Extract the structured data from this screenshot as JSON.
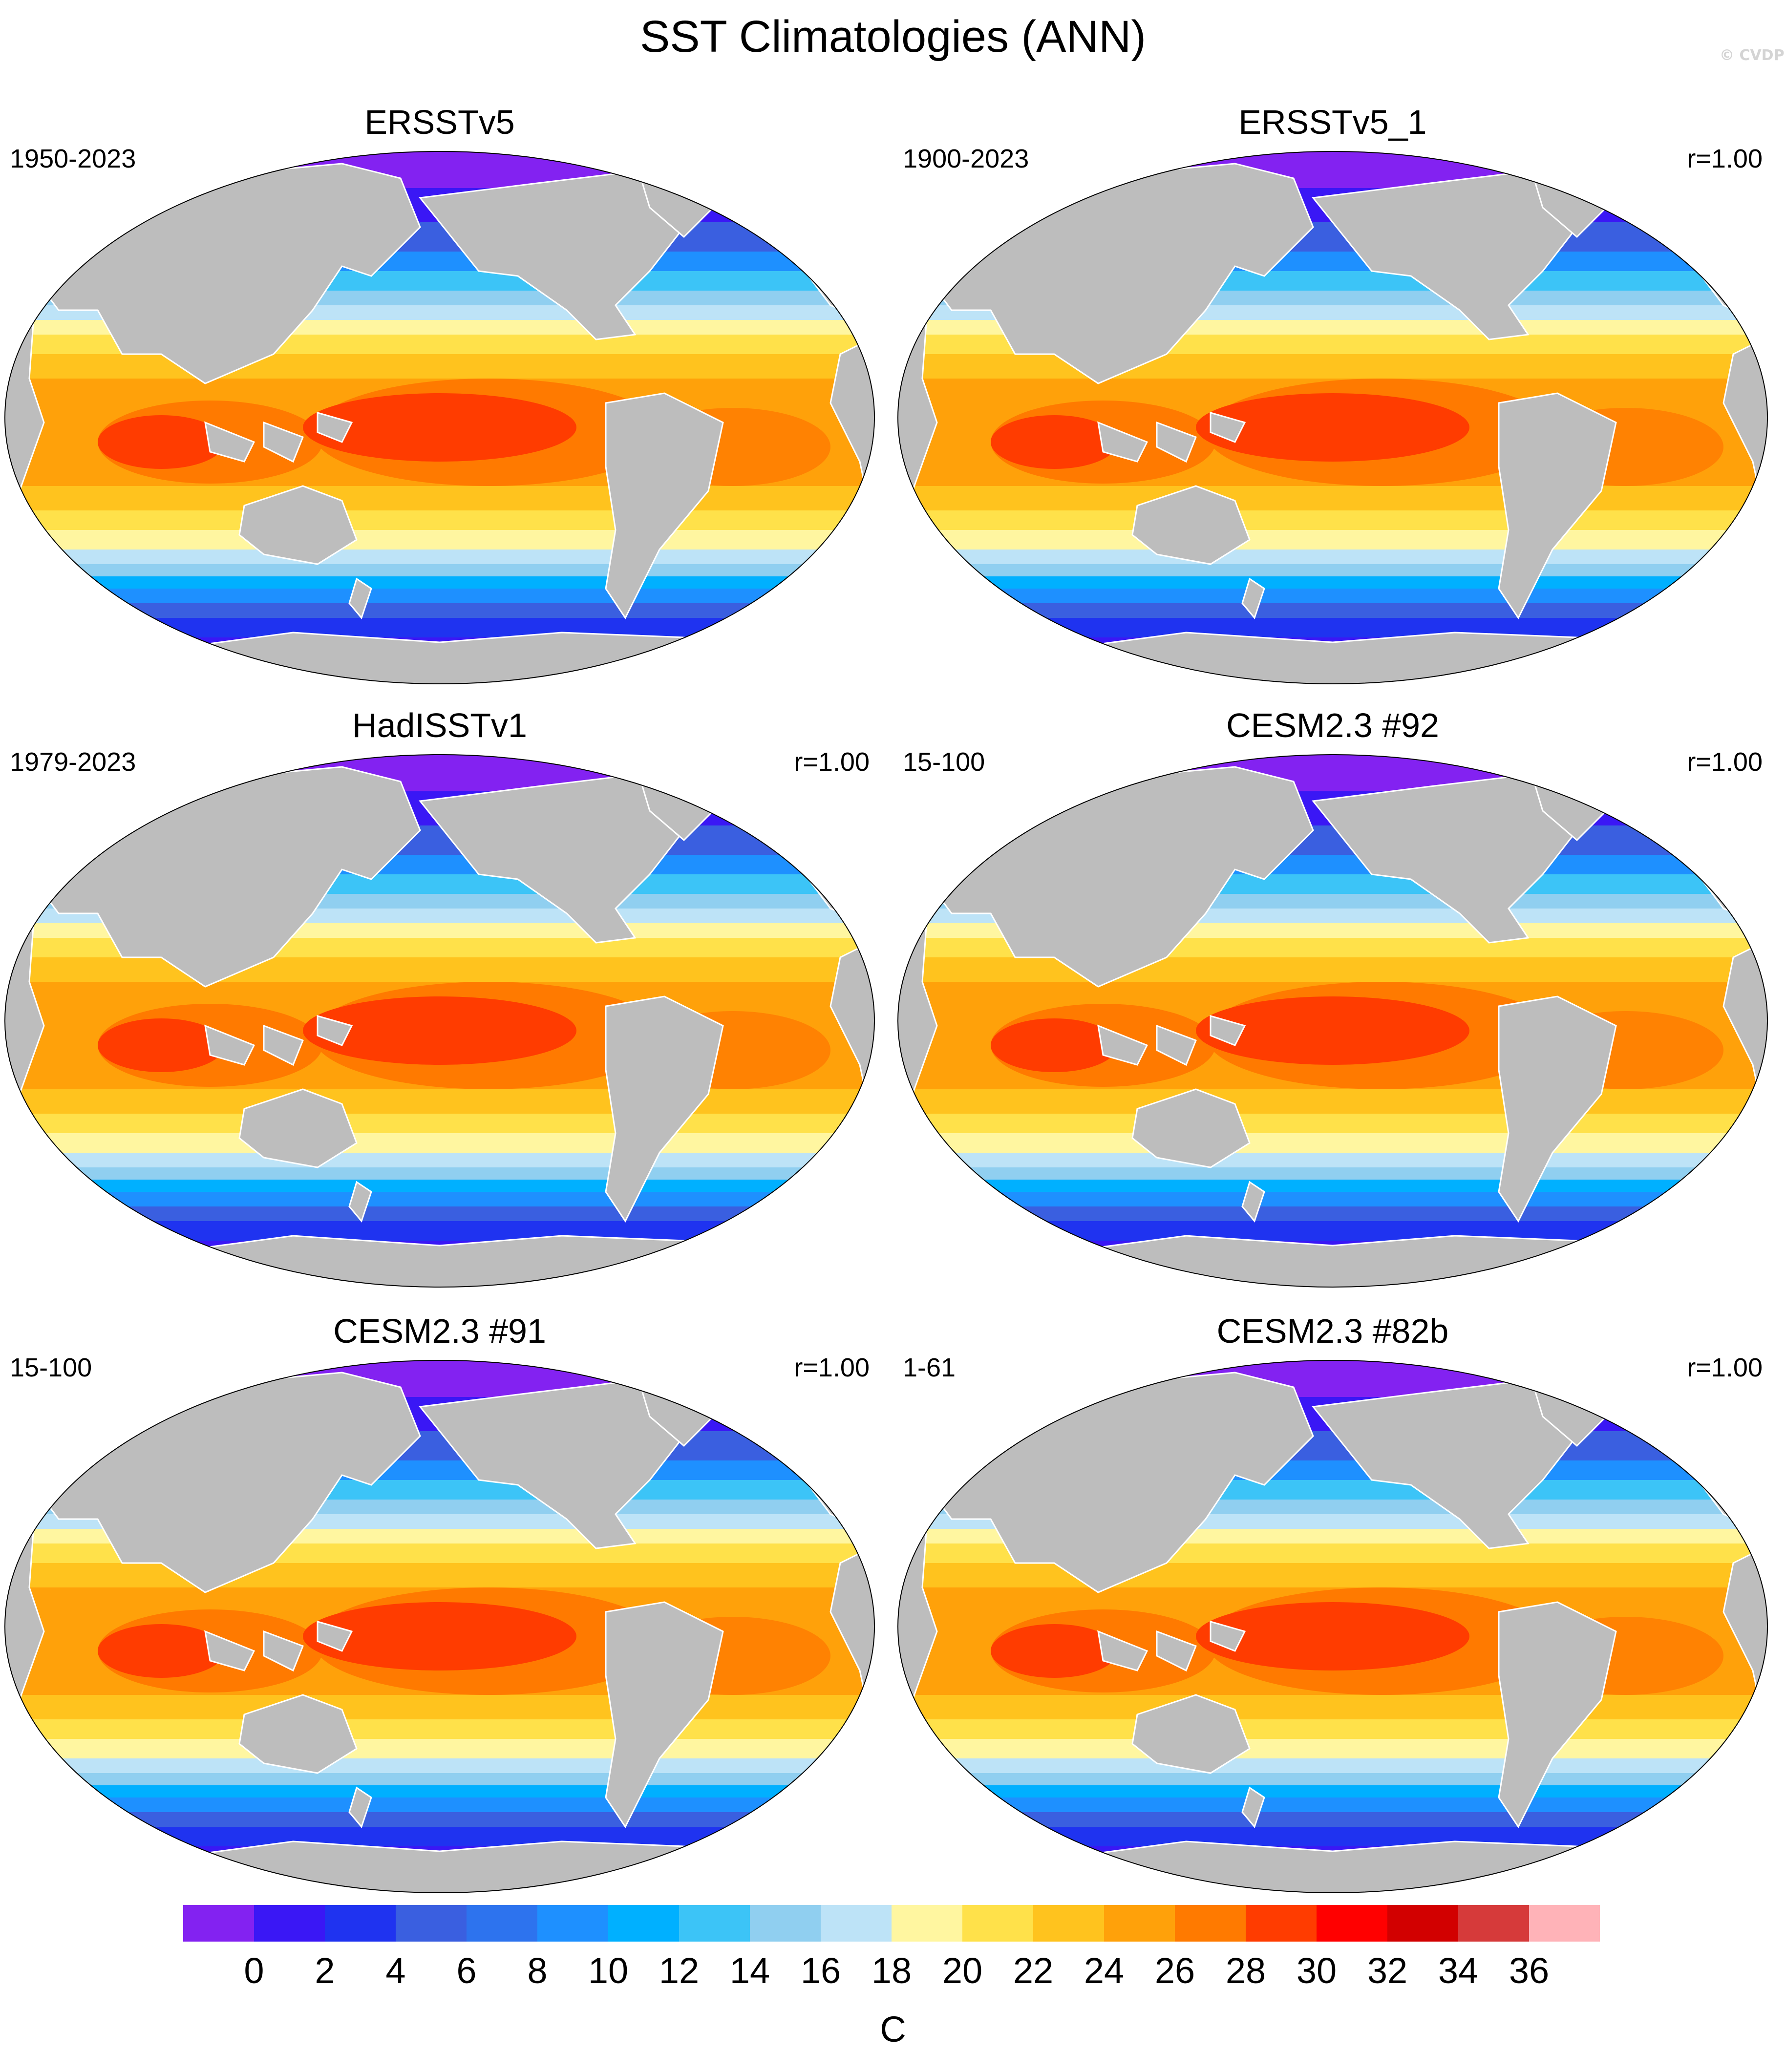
{
  "title": "SST Climatologies (ANN)",
  "watermark": "© CVDP",
  "panels": [
    {
      "name": "ERSSTv5",
      "period": "1950-2023",
      "r": ""
    },
    {
      "name": "ERSSTv5_1",
      "period": "1900-2023",
      "r": "r=1.00"
    },
    {
      "name": "HadISSTv1",
      "period": "1979-2023",
      "r": "r=1.00"
    },
    {
      "name": "CESM2.3 #92",
      "period": "15-100",
      "r": "r=1.00"
    },
    {
      "name": "CESM2.3 #91",
      "period": "15-100",
      "r": "r=1.00"
    },
    {
      "name": "CESM2.3 #82b",
      "period": "1-61",
      "r": "r=1.00"
    }
  ],
  "colorbar": {
    "unit": "C",
    "ticks": [
      "0",
      "2",
      "4",
      "6",
      "8",
      "10",
      "12",
      "14",
      "16",
      "18",
      "20",
      "22",
      "24",
      "26",
      "28",
      "30",
      "32",
      "34",
      "36"
    ],
    "colors": [
      "#8322f1",
      "#3a17f5",
      "#1f33f0",
      "#3a5fe0",
      "#2d73ee",
      "#1e90ff",
      "#00b0ff",
      "#3cc4f7",
      "#90cff0",
      "#bde3f7",
      "#fff6a0",
      "#ffe14a",
      "#ffc31e",
      "#ffa10a",
      "#ff7a00",
      "#ff3c00",
      "#ff0000",
      "#d20000",
      "#d63a3a",
      "#ffb3b8"
    ]
  },
  "land_color": "#bdbdbd"
}
